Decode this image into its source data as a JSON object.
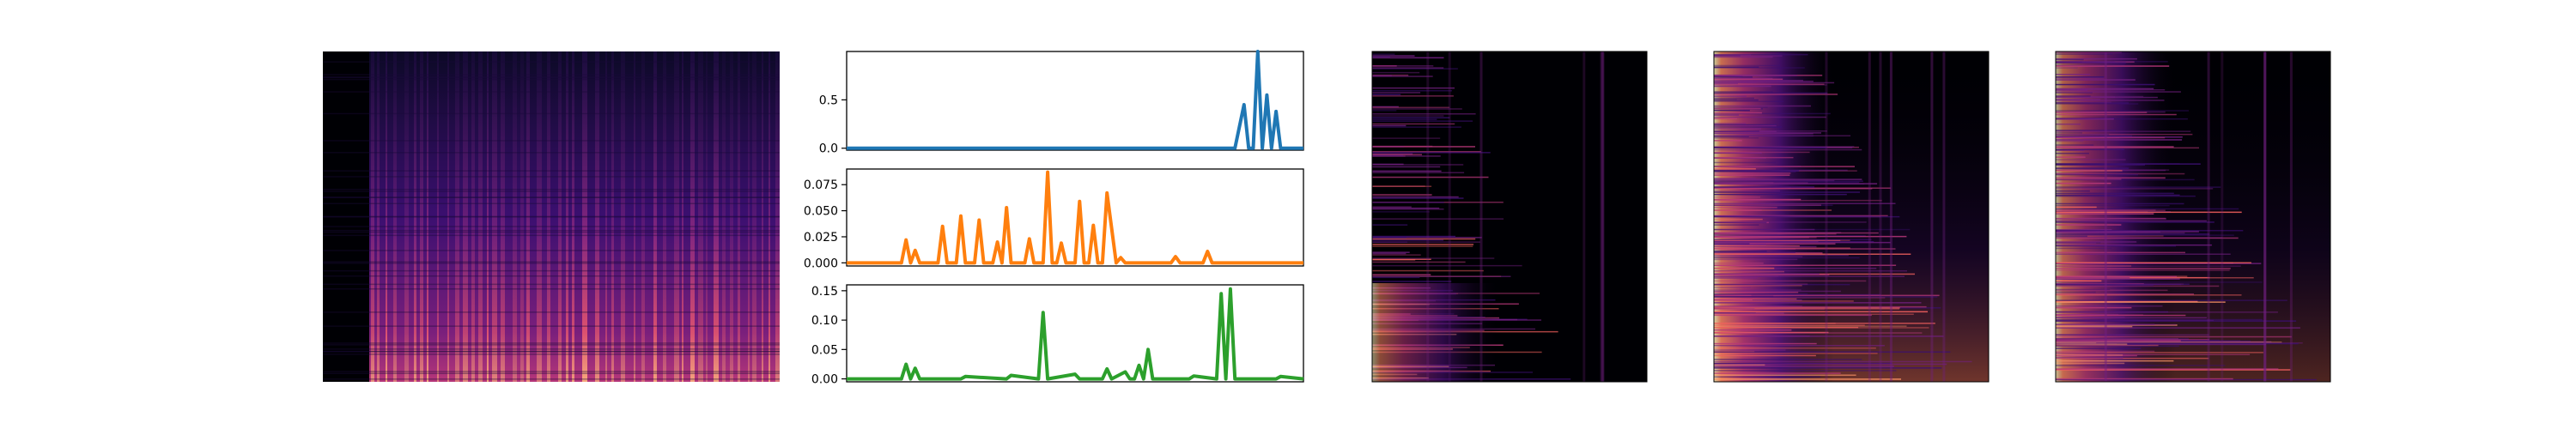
{
  "chart_data": [
    {
      "type": "heatmap",
      "colormap": "magma",
      "description": "spectrogram",
      "colors": {
        "low": "#000004",
        "mid": "#b73779",
        "high": "#fcfdbf"
      }
    },
    {
      "type": "line",
      "color": "#1f77b4",
      "ylim": [
        -0.02,
        1.0
      ],
      "yticks": [
        0.0,
        0.5
      ],
      "ytick_labels": [
        "0.0",
        "0.5"
      ],
      "xlim": [
        0,
        100
      ],
      "x": [
        0,
        85,
        87,
        88,
        89,
        90,
        91,
        92,
        93,
        94,
        95,
        96,
        97,
        98,
        99,
        100
      ],
      "y": [
        0,
        0,
        0.45,
        0,
        0,
        1.0,
        0,
        0.55,
        0,
        0.38,
        0,
        0,
        0,
        0,
        0,
        0
      ]
    },
    {
      "type": "line",
      "color": "#ff7f0e",
      "ylim": [
        -0.003,
        0.09
      ],
      "yticks": [
        0.0,
        0.025,
        0.05,
        0.075
      ],
      "ytick_labels": [
        "0.000",
        "0.025",
        "0.050",
        "0.075"
      ],
      "xlim": [
        0,
        100
      ],
      "x": [
        0,
        12,
        13,
        14,
        15,
        16,
        20,
        21,
        22,
        24,
        25,
        26,
        28,
        29,
        30,
        32,
        33,
        34,
        35,
        36,
        37,
        39,
        40,
        41,
        43,
        44,
        45,
        46,
        47,
        48,
        50,
        51,
        52,
        53,
        54,
        55,
        56,
        57,
        59,
        60,
        61,
        63,
        64,
        65,
        67,
        68,
        69,
        71,
        72,
        73,
        78,
        79,
        80,
        81,
        82,
        100
      ],
      "y": [
        0,
        0,
        0.022,
        0,
        0.012,
        0,
        0,
        0.035,
        0,
        0,
        0.045,
        0,
        0,
        0.041,
        0,
        0,
        0.02,
        0,
        0.053,
        0,
        0,
        0,
        0.023,
        0,
        0,
        0.087,
        0,
        0,
        0.019,
        0,
        0,
        0.059,
        0,
        0,
        0.036,
        0,
        0,
        0.067,
        0,
        0.005,
        0,
        0,
        0,
        0,
        0,
        0,
        0,
        0,
        0.006,
        0,
        0,
        0.011,
        0,
        0,
        0,
        0
      ]
    },
    {
      "type": "line",
      "color": "#2ca02c",
      "ylim": [
        -0.005,
        0.16
      ],
      "yticks": [
        0.0,
        0.05,
        0.1,
        0.15
      ],
      "ytick_labels": [
        "0.00",
        "0.05",
        "0.10",
        "0.15"
      ],
      "xlim": [
        0,
        100
      ],
      "x": [
        0,
        12,
        13,
        14,
        15,
        16,
        17,
        25,
        26,
        35,
        36,
        42,
        43,
        44,
        50,
        51,
        56,
        57,
        58,
        61,
        62,
        63,
        64,
        65,
        66,
        67,
        72,
        73,
        74,
        75,
        76,
        81,
        82,
        83,
        84,
        85,
        86,
        94,
        95,
        100
      ],
      "y": [
        0,
        0,
        0.025,
        0,
        0.018,
        0,
        0,
        0,
        0.004,
        0,
        0.006,
        0,
        0.113,
        0,
        0.008,
        0,
        0,
        0.017,
        0,
        0.012,
        0,
        0,
        0.023,
        0,
        0.05,
        0,
        0,
        0,
        0,
        0,
        0.005,
        0,
        0.145,
        0,
        0.153,
        0,
        0,
        0,
        0.004,
        0
      ]
    },
    {
      "type": "heatmap",
      "colormap": "magma",
      "description": "dark spectrogram, bright low frequencies on left"
    },
    {
      "type": "heatmap",
      "colormap": "magma",
      "description": "spectrogram, bright orange low-left region"
    },
    {
      "type": "heatmap",
      "colormap": "magma",
      "description": "spectrogram, bright low-left region"
    }
  ]
}
